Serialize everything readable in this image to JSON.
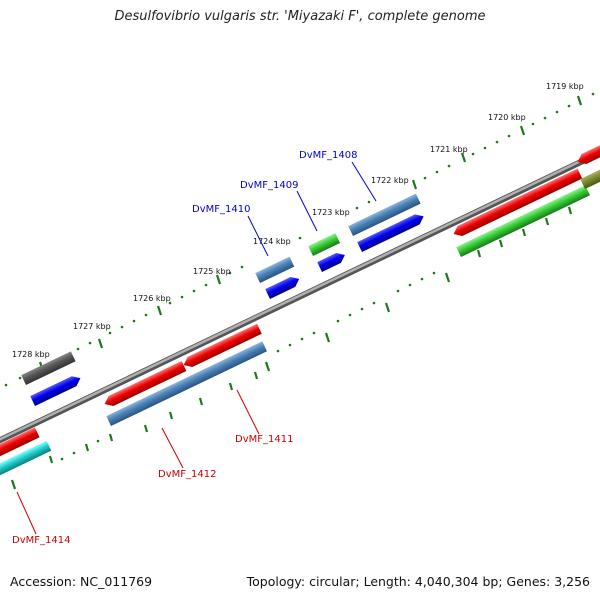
{
  "title": "Desulfovibrio vulgaris str. 'Miyazaki F', complete genome",
  "footer": {
    "accession": "Accession: NC_011769",
    "summary": "Topology: circular; Length: 4,040,304 bp; Genes: 3,256"
  },
  "kbp_labels": [
    "1719 kbp",
    "1720 kbp",
    "1721 kbp",
    "1722 kbp",
    "1723 kbp",
    "1724 kbp",
    "1725 kbp",
    "1726 kbp",
    "1727 kbp",
    "1728 kbp"
  ],
  "gene_labels": {
    "forward": [
      "DvMF_1408",
      "DvMF_1409",
      "DvMF_1410"
    ],
    "reverse": [
      "DvMF_1411",
      "DvMF_1412",
      "DvMF_1414"
    ]
  },
  "colors": {
    "forward_label": "#0000cc",
    "reverse_label": "#cc0000",
    "backbone": "#8a8a8a",
    "ticks": "#1a7a1a"
  }
}
